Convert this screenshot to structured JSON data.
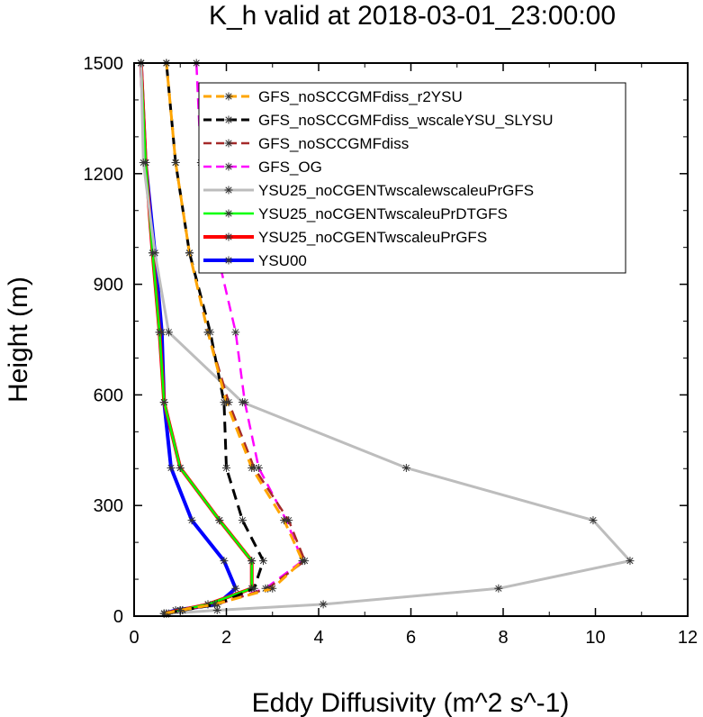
{
  "chart_data": {
    "type": "line",
    "title": "K_h valid at 2018-03-01_23:00:00",
    "xlabel": "Eddy Diffusivity (m^2 s^-1)",
    "ylabel": "Height (m)",
    "xlim": [
      0,
      12
    ],
    "ylim": [
      0,
      1500
    ],
    "xticks": [
      "0",
      "2",
      "4",
      "6",
      "8",
      "10",
      "12"
    ],
    "yticks": [
      "0",
      "300",
      "600",
      "900",
      "1200",
      "1500"
    ],
    "grid": false,
    "legend_position": "top-right",
    "series": [
      {
        "name": "GFS_noSCCGMFdiss_r2YSU",
        "color": "#ffa500",
        "dash": "dashed",
        "width": 3,
        "points": [
          [
            0.65,
            7
          ],
          [
            1.0,
            16
          ],
          [
            1.75,
            32
          ],
          [
            3.0,
            75
          ],
          [
            3.65,
            150
          ],
          [
            3.25,
            260
          ],
          [
            2.55,
            402
          ],
          [
            2.0,
            580
          ],
          [
            1.6,
            770
          ],
          [
            1.2,
            985
          ],
          [
            0.9,
            1230
          ],
          [
            0.7,
            1500
          ]
        ]
      },
      {
        "name": "GFS_noSCCGMFdiss_wscaleYSU_SLYSU",
        "color": "#000000",
        "dash": "dashed",
        "width": 3,
        "points": [
          [
            0.7,
            7
          ],
          [
            1.05,
            16
          ],
          [
            1.8,
            32
          ],
          [
            2.6,
            75
          ],
          [
            2.8,
            150
          ],
          [
            2.35,
            260
          ],
          [
            2.0,
            402
          ],
          [
            1.95,
            580
          ],
          [
            1.65,
            770
          ],
          [
            1.2,
            985
          ],
          [
            0.9,
            1230
          ],
          [
            0.7,
            1500
          ]
        ]
      },
      {
        "name": "GFS_noSCCGMFdiss",
        "color": "#a52a2a",
        "dash": "dashed",
        "width": 2.5,
        "points": [
          [
            0.7,
            7
          ],
          [
            1.05,
            16
          ],
          [
            1.8,
            32
          ],
          [
            2.9,
            75
          ],
          [
            3.7,
            150
          ],
          [
            3.35,
            260
          ],
          [
            2.6,
            402
          ],
          [
            2.05,
            580
          ],
          [
            1.6,
            770
          ],
          [
            1.2,
            985
          ],
          [
            0.9,
            1230
          ],
          [
            0.7,
            1500
          ]
        ]
      },
      {
        "name": "GFS_OG",
        "color": "#ff00ff",
        "dash": "dashed",
        "width": 2.5,
        "points": [
          [
            0.7,
            7
          ],
          [
            1.05,
            16
          ],
          [
            1.8,
            32
          ],
          [
            2.85,
            75
          ],
          [
            3.65,
            150
          ],
          [
            3.3,
            260
          ],
          [
            2.7,
            402
          ],
          [
            2.4,
            580
          ],
          [
            2.2,
            770
          ],
          [
            1.8,
            985
          ],
          [
            1.45,
            1230
          ],
          [
            1.35,
            1500
          ]
        ]
      },
      {
        "name": "YSU25_noCGENTwscalewscaleuPrGFS",
        "color": "#bdbdbd",
        "dash": "solid",
        "width": 3,
        "points": [
          [
            0.75,
            7
          ],
          [
            1.8,
            16
          ],
          [
            4.1,
            32
          ],
          [
            7.9,
            75
          ],
          [
            10.75,
            150
          ],
          [
            9.95,
            260
          ],
          [
            5.9,
            402
          ],
          [
            2.35,
            580
          ],
          [
            0.75,
            770
          ],
          [
            0.45,
            985
          ],
          [
            0.2,
            1230
          ],
          [
            0.15,
            1500
          ]
        ]
      },
      {
        "name": "YSU25_noCGENTwscaleuPrDTGFS",
        "color": "#00ff00",
        "dash": "solid",
        "width": 2.5,
        "points": [
          [
            0.65,
            7
          ],
          [
            1.0,
            16
          ],
          [
            1.6,
            32
          ],
          [
            2.55,
            75
          ],
          [
            2.55,
            150
          ],
          [
            1.85,
            260
          ],
          [
            1.0,
            402
          ],
          [
            0.65,
            580
          ],
          [
            0.55,
            770
          ],
          [
            0.4,
            985
          ],
          [
            0.25,
            1230
          ],
          [
            0.15,
            1500
          ]
        ]
      },
      {
        "name": "YSU25_noCGENTwscaleuPrGFS",
        "color": "#ff0000",
        "dash": "solid",
        "width": 4,
        "points": [
          [
            0.65,
            7
          ],
          [
            1.0,
            16
          ],
          [
            1.6,
            32
          ],
          [
            2.55,
            75
          ],
          [
            2.55,
            150
          ],
          [
            1.85,
            260
          ],
          [
            1.0,
            402
          ],
          [
            0.65,
            580
          ],
          [
            0.55,
            770
          ],
          [
            0.4,
            985
          ],
          [
            0.25,
            1230
          ],
          [
            0.15,
            1500
          ]
        ]
      },
      {
        "name": "YSU00",
        "color": "#0000ff",
        "dash": "solid",
        "width": 4,
        "points": [
          [
            0.65,
            7
          ],
          [
            0.9,
            16
          ],
          [
            1.8,
            32
          ],
          [
            2.2,
            75
          ],
          [
            1.95,
            150
          ],
          [
            1.25,
            260
          ],
          [
            0.8,
            402
          ],
          [
            0.65,
            580
          ],
          [
            0.6,
            770
          ],
          [
            0.45,
            985
          ],
          [
            0.25,
            1230
          ],
          [
            0.15,
            1500
          ]
        ]
      }
    ]
  }
}
